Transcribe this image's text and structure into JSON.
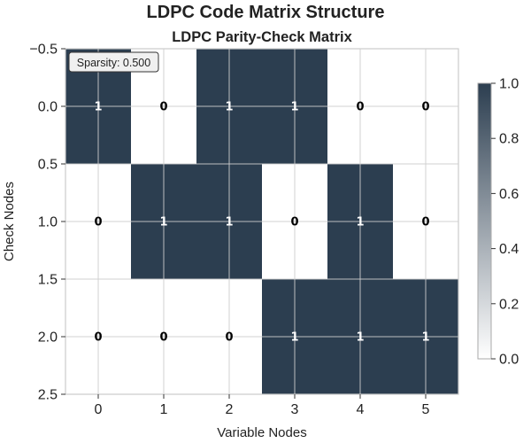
{
  "suptitle": "LDPC Code Matrix Structure",
  "chart_data": {
    "type": "heatmap",
    "title": "LDPC Parity-Check Matrix",
    "xlabel": "Variable Nodes",
    "ylabel": "Check Nodes",
    "x_ticks": [
      "0",
      "1",
      "2",
      "3",
      "4",
      "5"
    ],
    "y_ticks": [
      "−0.5",
      "0.0",
      "0.5",
      "1.0",
      "1.5",
      "2.0",
      "2.5"
    ],
    "y_tick_values": [
      -0.5,
      0.0,
      0.5,
      1.0,
      1.5,
      2.0,
      2.5
    ],
    "matrix": [
      [
        1,
        0,
        1,
        1,
        0,
        0
      ],
      [
        0,
        1,
        1,
        0,
        1,
        0
      ],
      [
        0,
        0,
        0,
        1,
        1,
        1
      ]
    ],
    "cell_labels": [
      [
        "1",
        "0",
        "1",
        "1",
        "0",
        "0"
      ],
      [
        "0",
        "1",
        "1",
        "0",
        "1",
        "0"
      ],
      [
        "0",
        "0",
        "0",
        "1",
        "1",
        "1"
      ]
    ],
    "xlim": [
      -0.5,
      5.5
    ],
    "ylim": [
      2.5,
      -0.5
    ],
    "grid": true,
    "annotation": "Sparsity: 0.500",
    "colorbar": {
      "ticks": [
        "0.0",
        "0.2",
        "0.4",
        "0.6",
        "0.8",
        "1.0"
      ],
      "tick_values": [
        0.0,
        0.2,
        0.4,
        0.6,
        0.8,
        1.0
      ],
      "range": [
        0,
        1
      ],
      "color_low": "#ffffff",
      "color_high": "#2c3e50"
    }
  }
}
